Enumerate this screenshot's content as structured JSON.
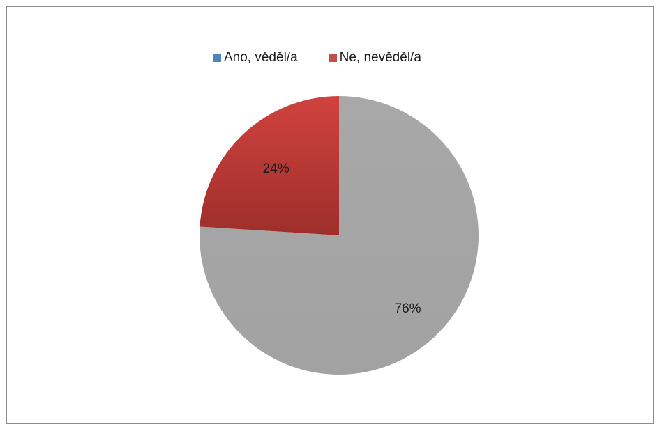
{
  "chart_data": {
    "type": "pie",
    "categories": [
      "Ano, věděl/a",
      "Ne, nevěděl/a"
    ],
    "values": [
      76,
      24
    ],
    "data_labels": [
      "76%",
      "24%"
    ],
    "colors": [
      "#a6a6a6",
      "#c0504d"
    ],
    "legend_colors": [
      "#4f81bd",
      "#c0504d"
    ],
    "legend_placement": "top"
  },
  "legend": {
    "items": [
      {
        "label": "Ano, věděl/a",
        "color": "#4f81bd"
      },
      {
        "label": "Ne, nevěděl/a",
        "color": "#c0504d"
      }
    ]
  }
}
